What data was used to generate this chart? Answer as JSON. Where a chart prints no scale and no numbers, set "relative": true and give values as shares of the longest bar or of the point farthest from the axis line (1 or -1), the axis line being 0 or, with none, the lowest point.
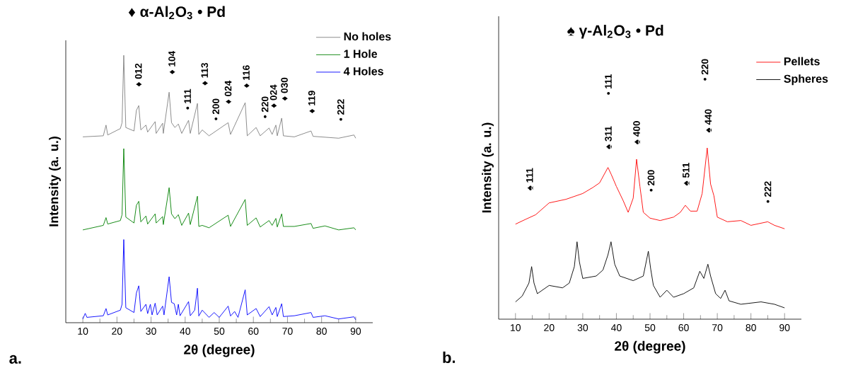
{
  "chart_data": [
    {
      "type": "line",
      "title": "♦ α-Al$_{2}$O$_{3}$  • Pd",
      "xlabel": "2θ (degree)",
      "ylabel": "Intensity (a. u.)",
      "relative": true,
      "tick_labels": "x",
      "legend": "top right",
      "xlim": [
        5,
        95
      ],
      "xticks": [
        10,
        20,
        30,
        40,
        50,
        60,
        70,
        80,
        90
      ],
      "series": [
        {
          "name": "No holes",
          "color": "#808080",
          "x": [
            10,
            16,
            16.8,
            17.3,
            21,
            21.5,
            22,
            22.6,
            25,
            25.7,
            26.4,
            27,
            28.5,
            29,
            31.2,
            31.5,
            33.4,
            33.6,
            35.3,
            36,
            37,
            38,
            39,
            41,
            41.5,
            43.6,
            44,
            45,
            47,
            52.6,
            53.3,
            57.6,
            58.2,
            60.8,
            62,
            64.6,
            65.5,
            66.6,
            67,
            68.3,
            68.8,
            72,
            76.9,
            77.5,
            85,
            89.5,
            90
          ],
          "values": [
            0.695,
            0.699,
            0.739,
            0.702,
            0.726,
            0.748,
            1,
            0.73,
            0.717,
            0.794,
            0.812,
            0.721,
            0.739,
            0.713,
            0.752,
            0.708,
            0.746,
            0.708,
            0.862,
            0.748,
            0.73,
            0.743,
            0.708,
            0.757,
            0.708,
            0.82,
            0.704,
            0.721,
            0.699,
            0.748,
            0.704,
            0.823,
            0.699,
            0.73,
            0.699,
            0.728,
            0.704,
            0.739,
            0.699,
            0.765,
            0.699,
            0.695,
            0.717,
            0.697,
            0.69,
            0.702,
            0.69
          ]
        },
        {
          "name": "1 Hole",
          "color": "#008000",
          "x": [
            10,
            16,
            16.8,
            17.3,
            21,
            21.5,
            22,
            22.6,
            25,
            25.7,
            26.4,
            27,
            28.5,
            29,
            31.2,
            31.5,
            33.4,
            33.6,
            35.3,
            36,
            37,
            38,
            39,
            41,
            41.5,
            43.6,
            44,
            45,
            47,
            52.6,
            53.3,
            57.6,
            58.2,
            60.8,
            62,
            64.6,
            65.5,
            66.6,
            67,
            68.3,
            68.8,
            72,
            76.9,
            77.5,
            81,
            85,
            89.5,
            90
          ],
          "values": [
            0.347,
            0.364,
            0.393,
            0.369,
            0.382,
            0.404,
            0.651,
            0.395,
            0.373,
            0.439,
            0.454,
            0.377,
            0.399,
            0.369,
            0.407,
            0.373,
            0.397,
            0.367,
            0.505,
            0.407,
            0.389,
            0.404,
            0.364,
            0.41,
            0.367,
            0.473,
            0.36,
            0.364,
            0.355,
            0.402,
            0.36,
            0.461,
            0.364,
            0.392,
            0.358,
            0.382,
            0.364,
            0.39,
            0.358,
            0.407,
            0.36,
            0.36,
            0.371,
            0.353,
            0.362,
            0.347,
            0.355,
            0.347
          ]
        },
        {
          "name": "4 Holes",
          "color": "#0000ff",
          "x": [
            10,
            10.7,
            11.2,
            16,
            16.8,
            17.3,
            21,
            21.5,
            22,
            22.6,
            25,
            25.7,
            26.4,
            27,
            28.5,
            29,
            29.8,
            30.3,
            31.2,
            31.8,
            33.4,
            33.8,
            35.3,
            36,
            36.8,
            37.5,
            38,
            38.5,
            41,
            41.5,
            42.8,
            43.6,
            44,
            45,
            47,
            48.5,
            50,
            52.6,
            53.3,
            54.5,
            55.5,
            57.6,
            58.2,
            60.8,
            62,
            64.6,
            65.5,
            66.6,
            67,
            68.3,
            68.8,
            72,
            76.9,
            77.5,
            81,
            85,
            89.5,
            90
          ],
          "values": [
            0.014,
            0.035,
            0.02,
            0.026,
            0.053,
            0.029,
            0.047,
            0.069,
            0.311,
            0.056,
            0.038,
            0.111,
            0.138,
            0.042,
            0.069,
            0.034,
            0.069,
            0.029,
            0.073,
            0.029,
            0.062,
            0.029,
            0.172,
            0.076,
            0.071,
            0.029,
            0.069,
            0.026,
            0.079,
            0.026,
            0.047,
            0.129,
            0.025,
            0.047,
            0.02,
            0.038,
            0.02,
            0.062,
            0.025,
            0.042,
            0.02,
            0.123,
            0.029,
            0.053,
            0.023,
            0.06,
            0.029,
            0.057,
            0.023,
            0.071,
            0.023,
            0.026,
            0.038,
            0.02,
            0.026,
            0.014,
            0.022,
            0.011
          ]
        }
      ],
      "annotations": [
        "a.",
        "♦ 012",
        "♦ 104",
        "• 111",
        "♦ 113",
        "• 200",
        "♦ 024",
        "♦ 116",
        "• 220",
        "♦ 024",
        "♦ 030",
        "♦ 119",
        "• 222"
      ]
    },
    {
      "type": "line",
      "title": "♠ γ-Al$_{2}$O$_{3}$  • Pd",
      "xlabel": "2θ (degree)",
      "ylabel": "Intensity (a. u.)",
      "relative": true,
      "tick_labels": "x",
      "legend": "top right",
      "xlim": [
        5,
        95
      ],
      "xticks": [
        10,
        20,
        30,
        40,
        50,
        60,
        70,
        80,
        90
      ],
      "series": [
        {
          "name": "Pellets",
          "color": "#ff0000",
          "x": [
            10,
            13,
            16,
            20,
            25,
            30,
            33,
            35,
            37.5,
            38.5,
            40,
            42,
            43.5,
            45,
            46,
            47,
            48,
            50,
            53,
            57,
            59,
            60.5,
            62,
            64,
            65.5,
            67,
            68,
            69,
            70,
            73,
            77,
            80,
            85,
            87,
            90
          ],
          "values": [
            0.555,
            0.583,
            0.61,
            0.679,
            0.7,
            0.734,
            0.769,
            0.796,
            0.886,
            0.844,
            0.775,
            0.693,
            0.624,
            0.707,
            0.934,
            0.775,
            0.624,
            0.59,
            0.576,
            0.596,
            0.624,
            0.665,
            0.631,
            0.631,
            0.734,
            1,
            0.789,
            0.72,
            0.596,
            0.569,
            0.576,
            0.548,
            0.569,
            0.548,
            0.528
          ]
        },
        {
          "name": "Spheres",
          "color": "#000000",
          "x": [
            10,
            12,
            14,
            14.8,
            15.5,
            16.5,
            20,
            24,
            26,
            27.5,
            28.3,
            29,
            30,
            34,
            36,
            37.5,
            38.4,
            39.5,
            41,
            45,
            48,
            49.5,
            50.2,
            51,
            53,
            55,
            57,
            60,
            63,
            64.8,
            66,
            67.2,
            68,
            69.5,
            71,
            72.3,
            73.5,
            77,
            83,
            87,
            90
          ],
          "values": [
            0.101,
            0.135,
            0.211,
            0.307,
            0.211,
            0.149,
            0.197,
            0.183,
            0.211,
            0.307,
            0.452,
            0.335,
            0.238,
            0.252,
            0.287,
            0.376,
            0.452,
            0.321,
            0.252,
            0.225,
            0.252,
            0.397,
            0.293,
            0.197,
            0.128,
            0.169,
            0.128,
            0.149,
            0.183,
            0.28,
            0.238,
            0.321,
            0.252,
            0.149,
            0.121,
            0.169,
            0.107,
            0.087,
            0.101,
            0.087,
            0.066
          ]
        }
      ],
      "annotations": [
        "b.",
        "♠ 111",
        "♠ 311",
        "• 111",
        "♠ 400",
        "• 200",
        "♠ 511",
        "♠ 440",
        "• 220",
        "• 222"
      ]
    }
  ]
}
